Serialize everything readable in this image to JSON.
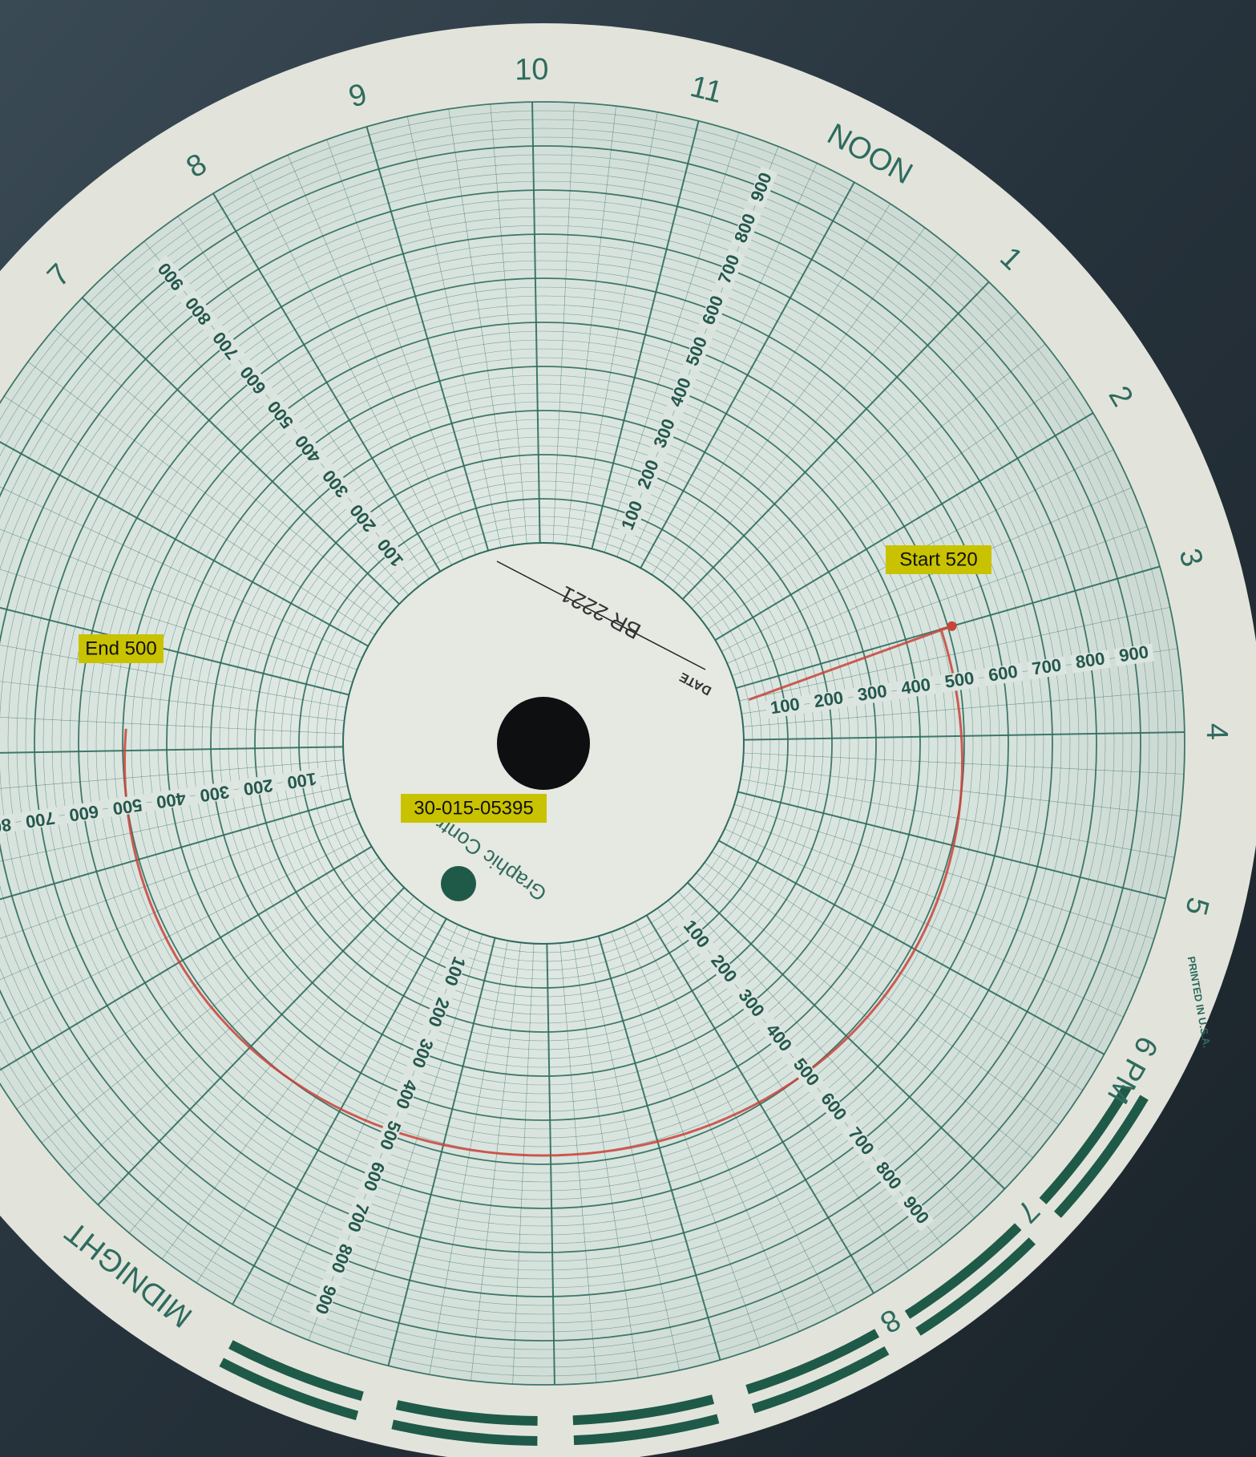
{
  "hour_labels": [
    "7",
    "8",
    "9",
    "10",
    "11",
    "NOON",
    "1",
    "2",
    "3",
    "4",
    "5",
    "6 PM",
    "7",
    "8",
    "MIDNIGHT"
  ],
  "scale_labels": [
    100,
    200,
    300,
    400,
    500,
    600,
    700,
    800,
    900
  ],
  "hub": {
    "chart_number": "BR 2221",
    "date_label": "DATE",
    "brand": "Graphic Controls",
    "printed": "PRINTED IN U.S.A."
  },
  "annotations": {
    "start": "Start 520",
    "end": "End 500",
    "well_id": "30-015-05395"
  }
}
